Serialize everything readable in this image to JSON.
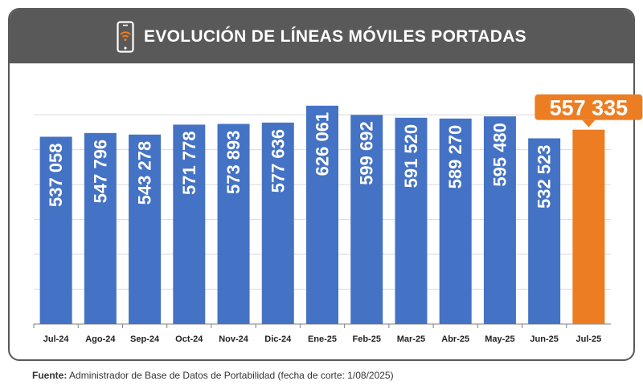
{
  "header": {
    "title": "EVOLUCIÓN DE LÍNEAS MÓVILES PORTADAS",
    "icon": "mobile-phone-signal-icon"
  },
  "colors": {
    "header_bg": "#595959",
    "bar": "#4472C4",
    "highlight": "#ED7D22",
    "grid": "#D9D9D9",
    "icon_accent": "#ED7D22"
  },
  "chart_data": {
    "type": "bar",
    "categories": [
      "Jul-24",
      "Ago-24",
      "Sep-24",
      "Oct-24",
      "Nov-24",
      "Dic-24",
      "Ene-25",
      "Feb-25",
      "Mar-25",
      "Abr-25",
      "May-25",
      "Jun-25",
      "Jul-25"
    ],
    "values": [
      537058,
      547796,
      543278,
      571778,
      573893,
      577636,
      626061,
      599692,
      591520,
      589270,
      595480,
      532523,
      557335
    ],
    "labels": [
      "537 058",
      "547 796",
      "543 278",
      "571 778",
      "573 893",
      "577 636",
      "626 061",
      "599 692",
      "591 520",
      "589 270",
      "595 480",
      "532 523",
      "557 335"
    ],
    "highlight_index": 12,
    "ylim": [
      0,
      690000
    ],
    "grid": true,
    "title": "EVOLUCIÓN DE LÍNEAS MÓVILES PORTADAS",
    "xlabel": "",
    "ylabel": ""
  },
  "footer": {
    "source_label": "Fuente:",
    "source_text": " Administrador de Base de Datos de Portabilidad (fecha de corte: 1/08/2025)"
  }
}
